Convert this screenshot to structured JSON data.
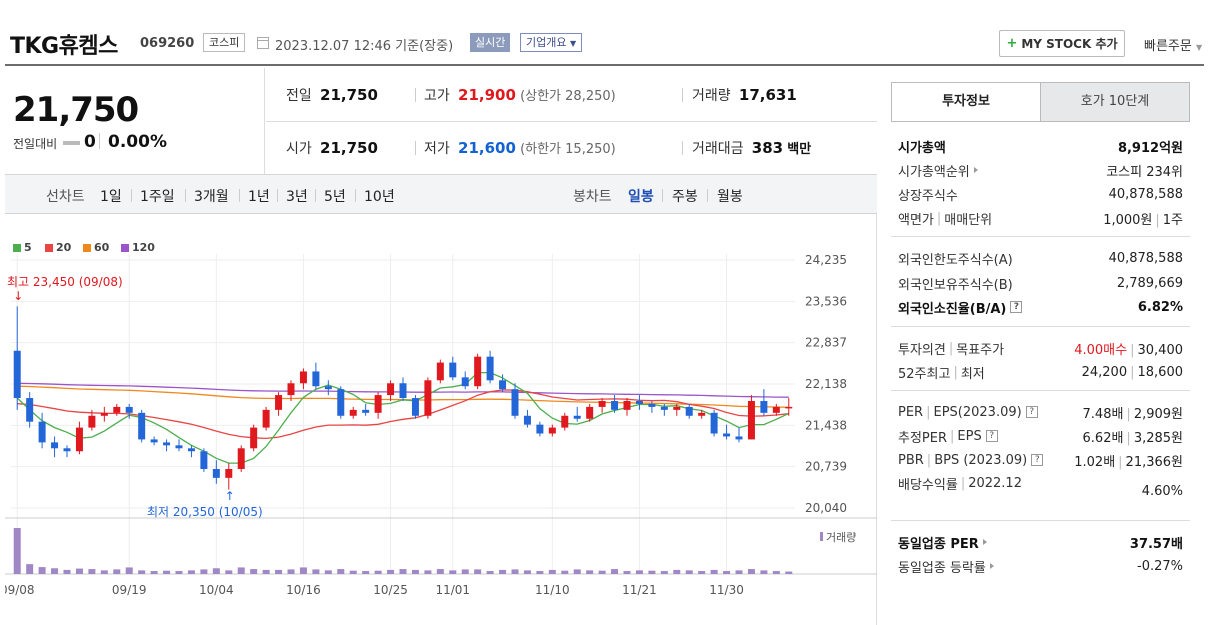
{
  "header": {
    "name": "TKG휴켐스",
    "code": "069260",
    "market": "코스피",
    "datetime": "2023.12.07 12:46",
    "basis": "기준(장중)",
    "realtime": "실시간",
    "company_overview": "기업개요",
    "mystock_label": "MY STOCK 추가",
    "quick_order": "빠른주문"
  },
  "price": {
    "current": "21,750",
    "change_label": "전일대비",
    "change": "0",
    "change_pct": "0.00%"
  },
  "info": {
    "prev_label": "전일",
    "prev": "21,750",
    "high_label": "고가",
    "high": "21,900",
    "upper_limit": "(상한가 28,250)",
    "volume_label": "거래량",
    "volume": "17,631",
    "open_label": "시가",
    "open": "21,750",
    "low_label": "저가",
    "low": "21,600",
    "lower_limit": "(하한가 15,250)",
    "amount_label": "거래대금",
    "amount": "383",
    "amount_unit": "백만"
  },
  "period": {
    "line_label": "선차트",
    "line_items": [
      "1일",
      "1주일",
      "3개월",
      "1년",
      "3년",
      "5년",
      "10년"
    ],
    "candle_label": "봉차트",
    "candle_items": [
      "일봉",
      "주봉",
      "월봉"
    ],
    "active": "일봉"
  },
  "chart_data": {
    "type": "candlestick",
    "legend": [
      "5",
      "20",
      "60",
      "120"
    ],
    "legend_colors": [
      "#4cae4c",
      "#e84545",
      "#f0881f",
      "#9b55c9"
    ],
    "up_color": "#e0191f",
    "down_color": "#2266d8",
    "y_ticks": [
      "24,235",
      "23,536",
      "22,837",
      "22,138",
      "21,438",
      "20,739",
      "20,040"
    ],
    "y_range": [
      20040,
      24235
    ],
    "x_ticks": [
      "09/08",
      "09/19",
      "10/04",
      "10/16",
      "10/25",
      "11/01",
      "11/10",
      "11/21",
      "11/30"
    ],
    "x_tick_index": [
      0,
      9,
      16,
      23,
      30,
      35,
      43,
      50,
      57
    ],
    "high_annotation": "최고 23,450 (09/08)",
    "low_annotation": "최저 20,350 (10/05)",
    "volume_label": "거래량",
    "candles": [
      [
        22700,
        23450,
        21700,
        21900
      ],
      [
        21900,
        22000,
        21400,
        21500
      ],
      [
        21500,
        21650,
        21050,
        21150
      ],
      [
        21150,
        21250,
        20900,
        21050
      ],
      [
        21050,
        21100,
        20900,
        21000
      ],
      [
        21000,
        21500,
        20950,
        21400
      ],
      [
        21400,
        21700,
        21350,
        21600
      ],
      [
        21600,
        21750,
        21500,
        21650
      ],
      [
        21650,
        21800,
        21600,
        21750
      ],
      [
        21750,
        21800,
        21550,
        21650
      ],
      [
        21650,
        21700,
        21150,
        21200
      ],
      [
        21200,
        21250,
        21100,
        21150
      ],
      [
        21150,
        21200,
        21000,
        21100
      ],
      [
        21100,
        21200,
        21000,
        21050
      ],
      [
        21050,
        21100,
        20900,
        21000
      ],
      [
        21000,
        21050,
        20650,
        20700
      ],
      [
        20700,
        20850,
        20450,
        20550
      ],
      [
        20550,
        20800,
        20350,
        20700
      ],
      [
        20700,
        21100,
        20650,
        21050
      ],
      [
        21050,
        21450,
        21000,
        21400
      ],
      [
        21400,
        21750,
        21350,
        21700
      ],
      [
        21700,
        22000,
        21600,
        21950
      ],
      [
        21950,
        22200,
        21850,
        22150
      ],
      [
        22150,
        22400,
        22050,
        22350
      ],
      [
        22350,
        22500,
        22050,
        22100
      ],
      [
        22100,
        22200,
        21950,
        22050
      ],
      [
        22050,
        22100,
        21550,
        21600
      ],
      [
        21600,
        21750,
        21550,
        21700
      ],
      [
        21700,
        21800,
        21600,
        21650
      ],
      [
        21650,
        22000,
        21550,
        21950
      ],
      [
        21950,
        22200,
        21850,
        22150
      ],
      [
        22150,
        22250,
        21850,
        21900
      ],
      [
        21900,
        21950,
        21550,
        21600
      ],
      [
        21600,
        22250,
        21550,
        22200
      ],
      [
        22200,
        22550,
        22150,
        22500
      ],
      [
        22500,
        22600,
        22200,
        22250
      ],
      [
        22250,
        22350,
        22050,
        22100
      ],
      [
        22100,
        22650,
        22050,
        22600
      ],
      [
        22600,
        22700,
        22150,
        22200
      ],
      [
        22200,
        22300,
        22000,
        22050
      ],
      [
        22050,
        22150,
        21550,
        21600
      ],
      [
        21600,
        21700,
        21400,
        21450
      ],
      [
        21450,
        21500,
        21250,
        21300
      ],
      [
        21300,
        21450,
        21250,
        21400
      ],
      [
        21400,
        21650,
        21350,
        21600
      ],
      [
        21600,
        21750,
        21500,
        21550
      ],
      [
        21550,
        21800,
        21500,
        21750
      ],
      [
        21750,
        21900,
        21650,
        21850
      ],
      [
        21850,
        21950,
        21650,
        21700
      ],
      [
        21700,
        21900,
        21600,
        21850
      ],
      [
        21850,
        21950,
        21700,
        21800
      ],
      [
        21800,
        21850,
        21650,
        21750
      ],
      [
        21750,
        21800,
        21600,
        21700
      ],
      [
        21700,
        21800,
        21600,
        21750
      ],
      [
        21750,
        21800,
        21550,
        21600
      ],
      [
        21600,
        21700,
        21550,
        21650
      ],
      [
        21650,
        21700,
        21250,
        21300
      ],
      [
        21300,
        21450,
        21200,
        21250
      ],
      [
        21250,
        21400,
        21150,
        21200
      ],
      [
        21200,
        21950,
        21200,
        21850
      ],
      [
        21850,
        22050,
        21600,
        21650
      ],
      [
        21650,
        21800,
        21600,
        21750
      ],
      [
        21750,
        21900,
        21600,
        21750
      ]
    ],
    "volumes": [
      280,
      60,
      42,
      35,
      25,
      33,
      30,
      22,
      28,
      40,
      22,
      18,
      20,
      18,
      22,
      28,
      35,
      22,
      40,
      30,
      25,
      25,
      28,
      40,
      28,
      22,
      30,
      20,
      18,
      20,
      25,
      30,
      25,
      22,
      30,
      22,
      28,
      28,
      18,
      25,
      28,
      22,
      18,
      25,
      20,
      28,
      22,
      20,
      30,
      18,
      22,
      20,
      18,
      25,
      22,
      18,
      25,
      18,
      22,
      30,
      22,
      18,
      15
    ]
  },
  "right_panel": {
    "tab_invest": "투자정보",
    "tab_hoga": "호가 10단계",
    "market_cap_label": "시가총액",
    "market_cap": "8,912억원",
    "rank_label": "시가총액순위",
    "rank": "코스피 234위",
    "shares_label": "상장주식수",
    "shares": "40,878,588",
    "face_label": "액면가",
    "unit_label": "매매단위",
    "face": "1,000원",
    "unit": "1주",
    "foreign_limit_label": "외국인한도주식수(A)",
    "foreign_limit": "40,878,588",
    "foreign_hold_label": "외국인보유주식수(B)",
    "foreign_hold": "2,789,669",
    "foreign_ratio_label": "외국인소진율(B/A)",
    "foreign_ratio": "6.82%",
    "opinion_label": "투자의견",
    "target_label": "목표주가",
    "opinion": "4.00매수",
    "target": "30,400",
    "w52_label": "52주최고",
    "w52_low_label": "최저",
    "w52_high": "24,200",
    "w52_low": "18,600",
    "per_label": "PER",
    "eps_label": "EPS(2023.09)",
    "per": "7.48배",
    "eps": "2,909원",
    "est_per_label": "추정PER",
    "est_eps_label": "EPS",
    "est_per": "6.62배",
    "est_eps": "3,285원",
    "pbr_label": "PBR",
    "bps_label": "BPS (2023.09)",
    "pbr": "1.02배",
    "bps": "21,366원",
    "div_label": "배당수익률",
    "div_year": "2022.12",
    "div": "4.60%",
    "sector_per_label": "동일업종 PER",
    "sector_per": "37.57배",
    "sector_chg_label": "동일업종 등락률",
    "sector_chg": "-0.27%"
  }
}
